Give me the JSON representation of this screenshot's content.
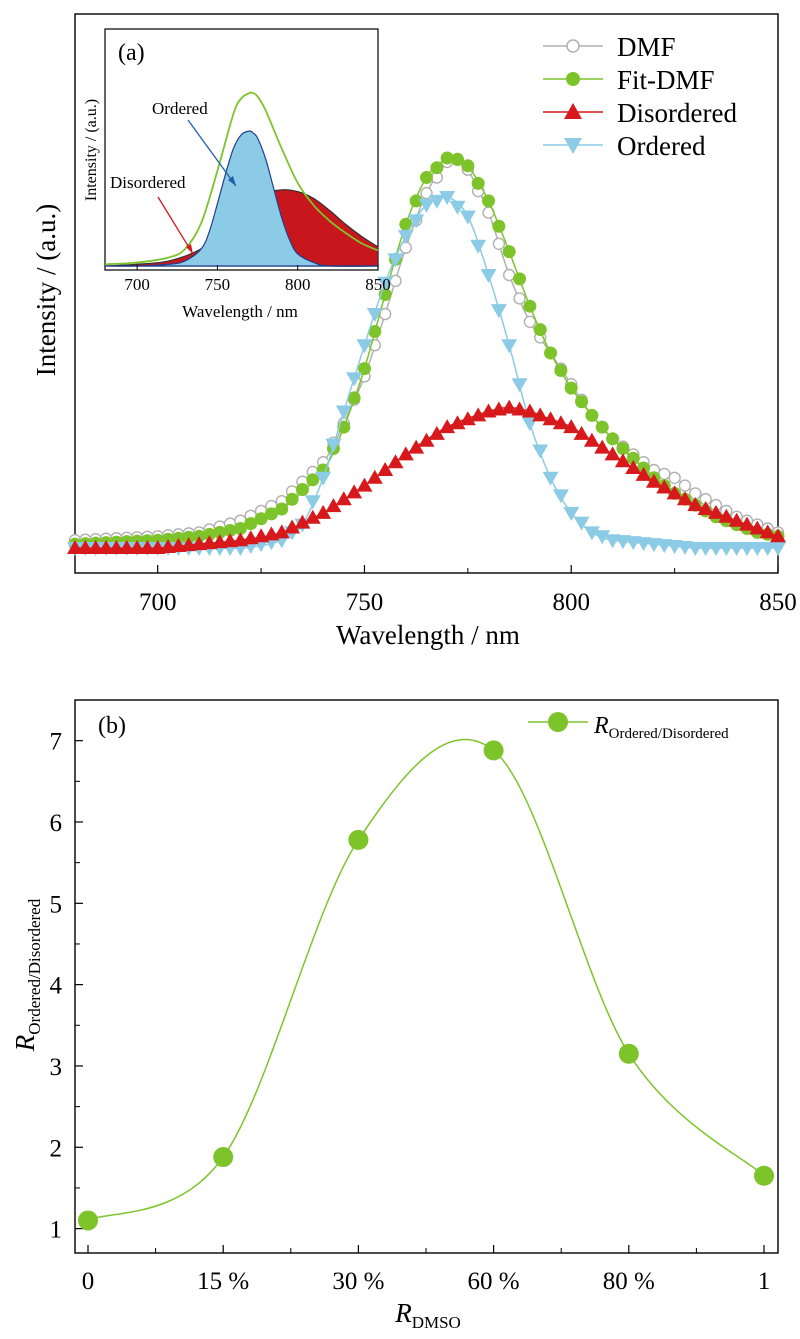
{
  "chart_data": [
    {
      "panel": "(a)",
      "type": "line",
      "xlabel": "Wavelength / nm",
      "ylabel": "Intensity / (a.u.)",
      "xlim": [
        680,
        850
      ],
      "xticks": [
        "700",
        "750",
        "800",
        "850"
      ],
      "legend_placement": "top-right",
      "series": [
        {
          "name": "DMF",
          "marker": "open-circle",
          "color": "#b0b0b0",
          "x": [
            680,
            700,
            710,
            720,
            730,
            740,
            745,
            750,
            755,
            760,
            765,
            770,
            772,
            775,
            780,
            785,
            790,
            795,
            800,
            805,
            810,
            815,
            820,
            825,
            830,
            835,
            840,
            845,
            850
          ],
          "y": [
            0.02,
            0.03,
            0.04,
            0.07,
            0.12,
            0.22,
            0.32,
            0.44,
            0.6,
            0.77,
            0.91,
            0.99,
            1.0,
            0.97,
            0.86,
            0.7,
            0.58,
            0.5,
            0.42,
            0.34,
            0.28,
            0.24,
            0.2,
            0.18,
            0.14,
            0.11,
            0.08,
            0.06,
            0.04
          ]
        },
        {
          "name": "Fit-DMF",
          "marker": "filled-circle",
          "color": "#7dc42b",
          "x": [
            680,
            700,
            710,
            720,
            730,
            740,
            745,
            750,
            755,
            760,
            765,
            770,
            772,
            775,
            780,
            785,
            790,
            795,
            800,
            805,
            810,
            815,
            820,
            825,
            830,
            835,
            840,
            845,
            850
          ],
          "y": [
            0.01,
            0.02,
            0.03,
            0.05,
            0.1,
            0.2,
            0.31,
            0.46,
            0.65,
            0.83,
            0.95,
            1.0,
            1.0,
            0.98,
            0.89,
            0.76,
            0.62,
            0.5,
            0.41,
            0.34,
            0.28,
            0.23,
            0.18,
            0.14,
            0.11,
            0.08,
            0.06,
            0.04,
            0.03
          ]
        },
        {
          "name": "Disordered",
          "marker": "filled-triangle-up",
          "color": "#d7191c",
          "x": [
            680,
            700,
            710,
            720,
            730,
            740,
            750,
            760,
            770,
            780,
            785,
            790,
            795,
            800,
            810,
            820,
            830,
            840,
            850
          ],
          "y": [
            0.0,
            0.0,
            0.01,
            0.02,
            0.04,
            0.09,
            0.16,
            0.24,
            0.31,
            0.35,
            0.36,
            0.35,
            0.33,
            0.31,
            0.24,
            0.17,
            0.11,
            0.07,
            0.03
          ]
        },
        {
          "name": "Ordered",
          "marker": "filled-triangle-down",
          "color": "#8ccbe6",
          "x": [
            680,
            700,
            720,
            730,
            735,
            740,
            745,
            750,
            755,
            760,
            765,
            770,
            775,
            780,
            785,
            790,
            795,
            800,
            805,
            810,
            820,
            830,
            840,
            850
          ],
          "y": [
            0.0,
            0.0,
            0.0,
            0.02,
            0.06,
            0.18,
            0.35,
            0.52,
            0.68,
            0.8,
            0.88,
            0.9,
            0.85,
            0.7,
            0.52,
            0.32,
            0.18,
            0.09,
            0.04,
            0.02,
            0.01,
            0.0,
            0.0,
            0.0
          ]
        }
      ],
      "inset": {
        "label": "(a)",
        "xlabel": "Wavelength / nm",
        "ylabel": "Intensity / (a.u.)",
        "xlim": [
          680,
          850
        ],
        "xticks": [
          "700",
          "750",
          "800",
          "850"
        ],
        "annotations": [
          "Ordered",
          "Disordered"
        ],
        "fit_curve": {
          "color": "#7dc42b",
          "x": [
            680,
            700,
            720,
            730,
            740,
            750,
            760,
            765,
            770,
            772,
            775,
            780,
            790,
            800,
            810,
            820,
            830,
            840,
            850
          ],
          "y": [
            0.01,
            0.02,
            0.05,
            0.1,
            0.25,
            0.55,
            0.88,
            0.97,
            1.0,
            1.0,
            0.98,
            0.9,
            0.68,
            0.48,
            0.35,
            0.26,
            0.19,
            0.13,
            0.09
          ]
        },
        "ordered_area": {
          "color": "#8ccbe6",
          "x": [
            680,
            700,
            720,
            730,
            740,
            745,
            750,
            755,
            760,
            765,
            770,
            772,
            775,
            780,
            785,
            790,
            795,
            800,
            810,
            820,
            850
          ],
          "y": [
            0.0,
            0.0,
            0.01,
            0.03,
            0.1,
            0.2,
            0.36,
            0.53,
            0.68,
            0.76,
            0.78,
            0.77,
            0.74,
            0.62,
            0.45,
            0.28,
            0.15,
            0.07,
            0.02,
            0.0,
            0.0
          ]
        },
        "disordered_area": {
          "color": "#c8161d",
          "x": [
            680,
            700,
            720,
            740,
            760,
            780,
            790,
            800,
            810,
            820,
            830,
            840,
            850
          ],
          "y": [
            0.0,
            0.01,
            0.03,
            0.1,
            0.25,
            0.41,
            0.44,
            0.43,
            0.39,
            0.32,
            0.24,
            0.17,
            0.11
          ]
        }
      }
    },
    {
      "panel": "(b)",
      "type": "line",
      "xlabel": "R",
      "xlabel_sub": "DMSO",
      "ylabel": "R",
      "ylabel_sub": "Ordered/Disordered",
      "categories": [
        "0",
        "15 %",
        "30 %",
        "60 %",
        "80 %",
        "1"
      ],
      "ylim": [
        0.7,
        7.5
      ],
      "yticks": [
        "1",
        "2",
        "3",
        "4",
        "5",
        "6",
        "7"
      ],
      "legend_placement": "top-right",
      "series": [
        {
          "name": "R",
          "name_sub": "Ordered/Disordered",
          "marker": "filled-circle",
          "color": "#7dc42b",
          "values": [
            1.1,
            1.88,
            5.78,
            6.88,
            3.15,
            1.65
          ]
        }
      ]
    }
  ]
}
